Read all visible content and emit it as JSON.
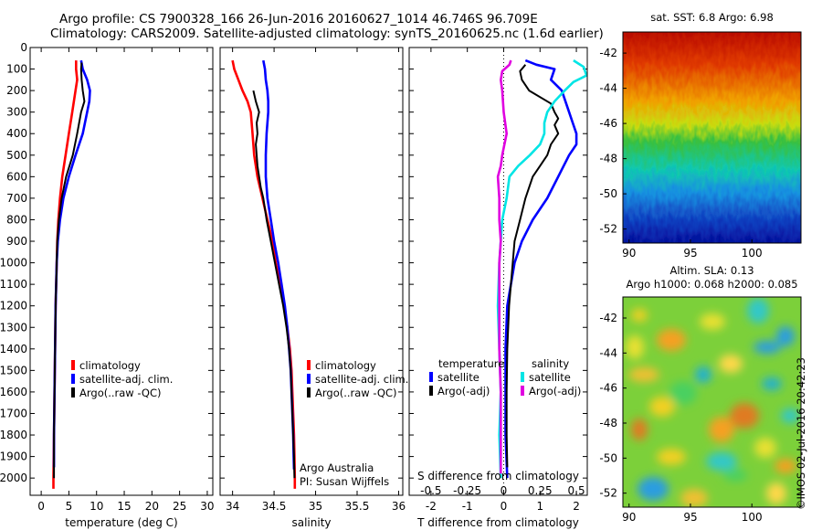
{
  "header": {
    "line1": "Argo profile: CS 7900328_166 26-Jun-2016 20160627_1014 46.746S 96.709E",
    "line2": "Climatology: CARS2009. Satellite-adjusted climatology: synTS_20160625.nc (1.6d earlier)"
  },
  "stamp": "©IMOS 02-Jul-2016 20:42:23",
  "colors": {
    "red": "#ff0000",
    "blue": "#0000ff",
    "black": "#000000",
    "cyan": "#00e5e5",
    "magenta": "#e000e0"
  },
  "chart_data": [
    {
      "type": "line",
      "xlabel": "temperature (deg C)",
      "ylabel": "",
      "xlim": [
        -2,
        31
      ],
      "ylim": [
        2080,
        0
      ],
      "xticks": [
        "0",
        "5",
        "10",
        "15",
        "20",
        "25",
        "30"
      ],
      "yticks": [
        "0",
        "100",
        "200",
        "300",
        "400",
        "500",
        "600",
        "700",
        "800",
        "900",
        "1000",
        "1100",
        "1200",
        "1300",
        "1400",
        "1500",
        "1600",
        "1700",
        "1800",
        "1900",
        "2000"
      ],
      "legend": [
        "climatology",
        "satellite-adj. clim.",
        "Argo(..raw -QC)"
      ],
      "legend_placement": "lower-right",
      "series": [
        {
          "name": "climatology",
          "color": "red",
          "points": [
            [
              6.3,
              60
            ],
            [
              6.3,
              100
            ],
            [
              6.5,
              150
            ],
            [
              6.2,
              200
            ],
            [
              5.6,
              300
            ],
            [
              5.0,
              400
            ],
            [
              4.4,
              500
            ],
            [
              3.8,
              600
            ],
            [
              3.4,
              700
            ],
            [
              3.1,
              800
            ],
            [
              2.9,
              900
            ],
            [
              2.8,
              1000
            ],
            [
              2.6,
              1200
            ],
            [
              2.5,
              1400
            ],
            [
              2.4,
              1600
            ],
            [
              2.3,
              1800
            ],
            [
              2.2,
              2000
            ],
            [
              2.2,
              2050
            ]
          ]
        },
        {
          "name": "satellite-adj. clim.",
          "color": "blue",
          "points": [
            [
              7.2,
              60
            ],
            [
              7.5,
              100
            ],
            [
              8.3,
              150
            ],
            [
              8.8,
              200
            ],
            [
              8.7,
              250
            ],
            [
              8.3,
              300
            ],
            [
              7.5,
              400
            ],
            [
              6.2,
              500
            ],
            [
              5.0,
              600
            ],
            [
              4.0,
              700
            ],
            [
              3.4,
              800
            ],
            [
              3.0,
              900
            ],
            [
              2.8,
              1000
            ],
            [
              2.6,
              1200
            ],
            [
              2.5,
              1400
            ],
            [
              2.4,
              1600
            ],
            [
              2.3,
              1800
            ],
            [
              2.3,
              1950
            ]
          ]
        },
        {
          "name": "Argo(..raw -QC)",
          "color": "black",
          "points": [
            [
              7.3,
              70
            ],
            [
              7.2,
              100
            ],
            [
              7.3,
              150
            ],
            [
              7.5,
              200
            ],
            [
              7.8,
              250
            ],
            [
              7.2,
              300
            ],
            [
              6.5,
              400
            ],
            [
              5.7,
              500
            ],
            [
              4.5,
              600
            ],
            [
              3.7,
              700
            ],
            [
              3.2,
              800
            ],
            [
              2.9,
              900
            ],
            [
              2.8,
              1000
            ],
            [
              2.6,
              1200
            ],
            [
              2.5,
              1400
            ],
            [
              2.4,
              1600
            ],
            [
              2.3,
              1800
            ],
            [
              2.3,
              2000
            ]
          ]
        }
      ]
    },
    {
      "type": "line",
      "xlabel": "salinity",
      "ylabel": "",
      "xlim": [
        33.85,
        36.05
      ],
      "ylim": [
        2080,
        0
      ],
      "xticks": [
        "34",
        "34.5",
        "35",
        "35.5",
        "36"
      ],
      "yticks": [],
      "legend": [
        "climatology",
        "satellite-adj. clim.",
        "Argo(..raw -QC)"
      ],
      "legend_placement": "lower-right",
      "annotation": [
        "Argo Australia",
        "PI: Susan Wijffels"
      ],
      "series": [
        {
          "name": "climatology",
          "color": "red",
          "points": [
            [
              34.0,
              60
            ],
            [
              34.02,
              100
            ],
            [
              34.07,
              150
            ],
            [
              34.12,
              200
            ],
            [
              34.18,
              250
            ],
            [
              34.22,
              300
            ],
            [
              34.24,
              400
            ],
            [
              34.26,
              500
            ],
            [
              34.3,
              600
            ],
            [
              34.36,
              700
            ],
            [
              34.42,
              800
            ],
            [
              34.48,
              900
            ],
            [
              34.52,
              1000
            ],
            [
              34.57,
              1100
            ],
            [
              34.62,
              1200
            ],
            [
              34.66,
              1300
            ],
            [
              34.69,
              1400
            ],
            [
              34.71,
              1500
            ],
            [
              34.72,
              1600
            ],
            [
              34.73,
              1700
            ],
            [
              34.74,
              1800
            ],
            [
              34.745,
              1900
            ],
            [
              34.75,
              2000
            ],
            [
              34.75,
              2050
            ]
          ]
        },
        {
          "name": "satellite-adj. clim.",
          "color": "blue",
          "points": [
            [
              34.37,
              60
            ],
            [
              34.39,
              100
            ],
            [
              34.4,
              150
            ],
            [
              34.42,
              200
            ],
            [
              34.43,
              250
            ],
            [
              34.43,
              300
            ],
            [
              34.41,
              400
            ],
            [
              34.4,
              500
            ],
            [
              34.4,
              600
            ],
            [
              34.42,
              700
            ],
            [
              34.46,
              800
            ],
            [
              34.5,
              900
            ],
            [
              34.55,
              1000
            ],
            [
              34.59,
              1100
            ],
            [
              34.63,
              1200
            ],
            [
              34.66,
              1300
            ],
            [
              34.68,
              1400
            ],
            [
              34.7,
              1500
            ],
            [
              34.71,
              1600
            ],
            [
              34.72,
              1700
            ],
            [
              34.73,
              1800
            ],
            [
              34.735,
              1900
            ],
            [
              34.74,
              1960
            ]
          ]
        },
        {
          "name": "Argo(..raw -QC)",
          "color": "black",
          "points": [
            [
              34.25,
              200
            ],
            [
              34.28,
              250
            ],
            [
              34.32,
              300
            ],
            [
              34.29,
              350
            ],
            [
              34.3,
              400
            ],
            [
              34.28,
              450
            ],
            [
              34.29,
              500
            ],
            [
              34.3,
              550
            ],
            [
              34.32,
              600
            ],
            [
              34.34,
              650
            ],
            [
              34.37,
              700
            ],
            [
              34.41,
              800
            ],
            [
              34.46,
              900
            ],
            [
              34.51,
              1000
            ],
            [
              34.56,
              1100
            ],
            [
              34.61,
              1200
            ],
            [
              34.65,
              1300
            ],
            [
              34.68,
              1400
            ],
            [
              34.7,
              1500
            ],
            [
              34.71,
              1600
            ],
            [
              34.72,
              1700
            ],
            [
              34.73,
              1800
            ],
            [
              34.74,
              1900
            ],
            [
              34.745,
              2000
            ]
          ]
        }
      ]
    },
    {
      "type": "line",
      "xlabel": "T difference from climatology",
      "xlabel2": "S difference from climatology",
      "ylabel": "",
      "xlim": [
        -2.6,
        2.3
      ],
      "ylim": [
        2080,
        0
      ],
      "xticks": [
        "-2",
        "-1",
        "0",
        "1",
        "2"
      ],
      "xticks_top": [
        "-0.5",
        "-0.25",
        "0",
        "0.25",
        "0.5"
      ],
      "yticks": [],
      "legend_title_left": "temperature",
      "legend_title_right": "salinity",
      "legend": [
        "satellite",
        "Argo(-adj)",
        "satellite",
        "Argo(-adj)"
      ],
      "legend_placement": "lower-center",
      "series": [
        {
          "name": "satellite",
          "group": "temperature",
          "color": "blue",
          "points": [
            [
              0.6,
              60
            ],
            [
              0.9,
              80
            ],
            [
              1.4,
              100
            ],
            [
              1.3,
              150
            ],
            [
              1.6,
              200
            ],
            [
              1.7,
              250
            ],
            [
              1.8,
              300
            ],
            [
              1.9,
              350
            ],
            [
              2.0,
              400
            ],
            [
              2.0,
              450
            ],
            [
              1.8,
              500
            ],
            [
              1.5,
              600
            ],
            [
              1.2,
              700
            ],
            [
              0.8,
              800
            ],
            [
              0.5,
              900
            ],
            [
              0.3,
              1000
            ],
            [
              0.2,
              1100
            ],
            [
              0.1,
              1200
            ],
            [
              0.05,
              1400
            ],
            [
              0.05,
              1600
            ],
            [
              0.05,
              1800
            ],
            [
              0.1,
              2000
            ]
          ]
        },
        {
          "name": "Argo(-adj)",
          "group": "temperature",
          "color": "black",
          "points": [
            [
              0.6,
              80
            ],
            [
              0.45,
              110
            ],
            [
              0.5,
              150
            ],
            [
              0.7,
              200
            ],
            [
              1.3,
              260
            ],
            [
              1.4,
              300
            ],
            [
              1.5,
              330
            ],
            [
              1.4,
              360
            ],
            [
              1.5,
              400
            ],
            [
              1.3,
              450
            ],
            [
              1.2,
              500
            ],
            [
              1.0,
              550
            ],
            [
              0.8,
              600
            ],
            [
              0.6,
              700
            ],
            [
              0.45,
              800
            ],
            [
              0.3,
              900
            ],
            [
              0.25,
              1000
            ],
            [
              0.2,
              1100
            ],
            [
              0.15,
              1200
            ],
            [
              0.1,
              1400
            ],
            [
              0.08,
              1600
            ],
            [
              0.08,
              1800
            ],
            [
              0.1,
              1950
            ]
          ]
        },
        {
          "name": "satellite",
          "group": "salinity",
          "color": "cyan",
          "points": [
            [
              0.48,
              60
            ],
            [
              0.55,
              90
            ],
            [
              0.56,
              110
            ],
            [
              0.57,
              130
            ],
            [
              0.48,
              160
            ],
            [
              0.42,
              200
            ],
            [
              0.35,
              250
            ],
            [
              0.3,
              300
            ],
            [
              0.28,
              350
            ],
            [
              0.28,
              400
            ],
            [
              0.25,
              450
            ],
            [
              0.18,
              500
            ],
            [
              0.1,
              550
            ],
            [
              0.04,
              600
            ],
            [
              0.02,
              700
            ],
            [
              -0.01,
              800
            ],
            [
              -0.02,
              900
            ],
            [
              -0.03,
              1000
            ],
            [
              -0.04,
              1200
            ],
            [
              -0.03,
              1400
            ],
            [
              -0.02,
              1600
            ],
            [
              -0.03,
              1800
            ],
            [
              -0.02,
              2000
            ]
          ]
        },
        {
          "name": "Argo(-adj)",
          "group": "salinity",
          "color": "magenta",
          "points": [
            [
              0.05,
              60
            ],
            [
              0.04,
              80
            ],
            [
              -0.01,
              110
            ],
            [
              -0.02,
              150
            ],
            [
              -0.01,
              200
            ],
            [
              0.0,
              300
            ],
            [
              0.02,
              400
            ],
            [
              -0.01,
              500
            ],
            [
              -0.02,
              550
            ],
            [
              -0.04,
              600
            ],
            [
              -0.03,
              700
            ],
            [
              -0.03,
              800
            ],
            [
              -0.02,
              900
            ],
            [
              -0.03,
              1000
            ],
            [
              -0.03,
              1200
            ],
            [
              -0.03,
              1400
            ],
            [
              -0.02,
              1600
            ],
            [
              -0.02,
              1800
            ],
            [
              -0.02,
              1980
            ]
          ]
        }
      ]
    },
    {
      "type": "heatmap",
      "title": "sat. SST: 6.8  Argo: 6.98",
      "xticks": [
        "90",
        "95",
        "100"
      ],
      "yticks": [
        "-42",
        "-44",
        "-46",
        "-48",
        "-50",
        "-52"
      ],
      "xlim": [
        89.5,
        104
      ],
      "ylim": [
        -52.8,
        -40.8
      ],
      "colormap": "jet",
      "pattern": "warm north (top) grading to cold south (bottom)"
    },
    {
      "type": "heatmap",
      "title": "Altim. SLA: 0.13",
      "subtitle": "Argo h1000: 0.068  h2000: 0.085",
      "xticks": [
        "90",
        "95",
        "100"
      ],
      "yticks": [
        "-42",
        "-44",
        "-46",
        "-48",
        "-50",
        "-52"
      ],
      "xlim": [
        89.5,
        104
      ],
      "ylim": [
        -52.8,
        -40.8
      ],
      "colormap": "jet",
      "pattern": "mottled green field with scattered yellow/red highs and cyan/blue lows"
    }
  ]
}
